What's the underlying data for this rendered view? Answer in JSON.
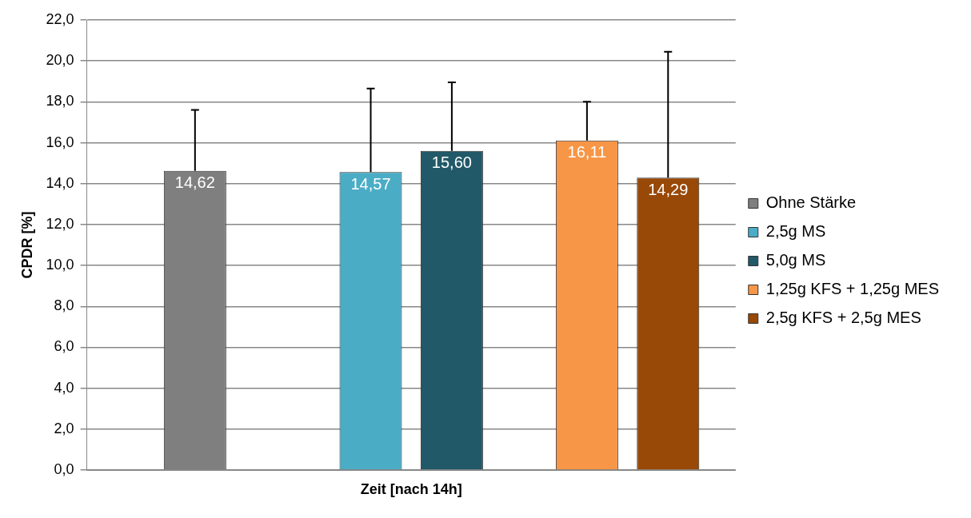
{
  "chart_data": {
    "type": "bar",
    "xlabel": "Zeit [nach 14h]",
    "ylabel": "CPDR [%]",
    "categories": [
      null,
      null,
      null
    ],
    "series": [
      {
        "name": "Ohne Stärke",
        "color": "#7f7f7f",
        "values": [
          14.62,
          null,
          null
        ],
        "errors": [
          [
            14.62,
            17.6
          ],
          null,
          null
        ],
        "value_labels": [
          "14,62",
          null,
          null
        ]
      },
      {
        "name": "2,5g MS",
        "color": "#4bacc6",
        "values": [
          null,
          14.57,
          null
        ],
        "errors": [
          null,
          [
            14.57,
            18.65
          ],
          null
        ],
        "value_labels": [
          null,
          "14,57",
          null
        ]
      },
      {
        "name": "5,0g MS",
        "color": "#215968",
        "values": [
          null,
          15.6,
          null
        ],
        "errors": [
          null,
          [
            15.6,
            18.95
          ],
          null
        ],
        "value_labels": [
          null,
          "15,60",
          null
        ]
      },
      {
        "name": "1,25g KFS + 1,25g MES",
        "color": "#f79646",
        "values": [
          null,
          null,
          16.11
        ],
        "errors": [
          null,
          null,
          [
            16.11,
            18.0
          ]
        ],
        "value_labels": [
          null,
          null,
          "16,11"
        ]
      },
      {
        "name": "2,5g KFS + 2,5g MES",
        "color": "#984807",
        "values": [
          null,
          null,
          14.29
        ],
        "errors": [
          null,
          null,
          [
            14.29,
            20.45
          ]
        ],
        "value_labels": [
          null,
          null,
          "14,29"
        ]
      }
    ],
    "ylim": [
      0,
      22
    ],
    "yticks": [
      {
        "value": 0,
        "label": "0,0"
      },
      {
        "value": 2,
        "label": "2,0"
      },
      {
        "value": 4,
        "label": "4,0"
      },
      {
        "value": 6,
        "label": "6,0"
      },
      {
        "value": 8,
        "label": "8,0"
      },
      {
        "value": 10,
        "label": "10,0"
      },
      {
        "value": 12,
        "label": "12,0"
      },
      {
        "value": 14,
        "label": "14,0"
      },
      {
        "value": 16,
        "label": "16,0"
      },
      {
        "value": 18,
        "label": "18,0"
      },
      {
        "value": 20,
        "label": "20,0"
      },
      {
        "value": 22,
        "label": "22,0"
      }
    ],
    "grid": "y",
    "legend": "right"
  }
}
